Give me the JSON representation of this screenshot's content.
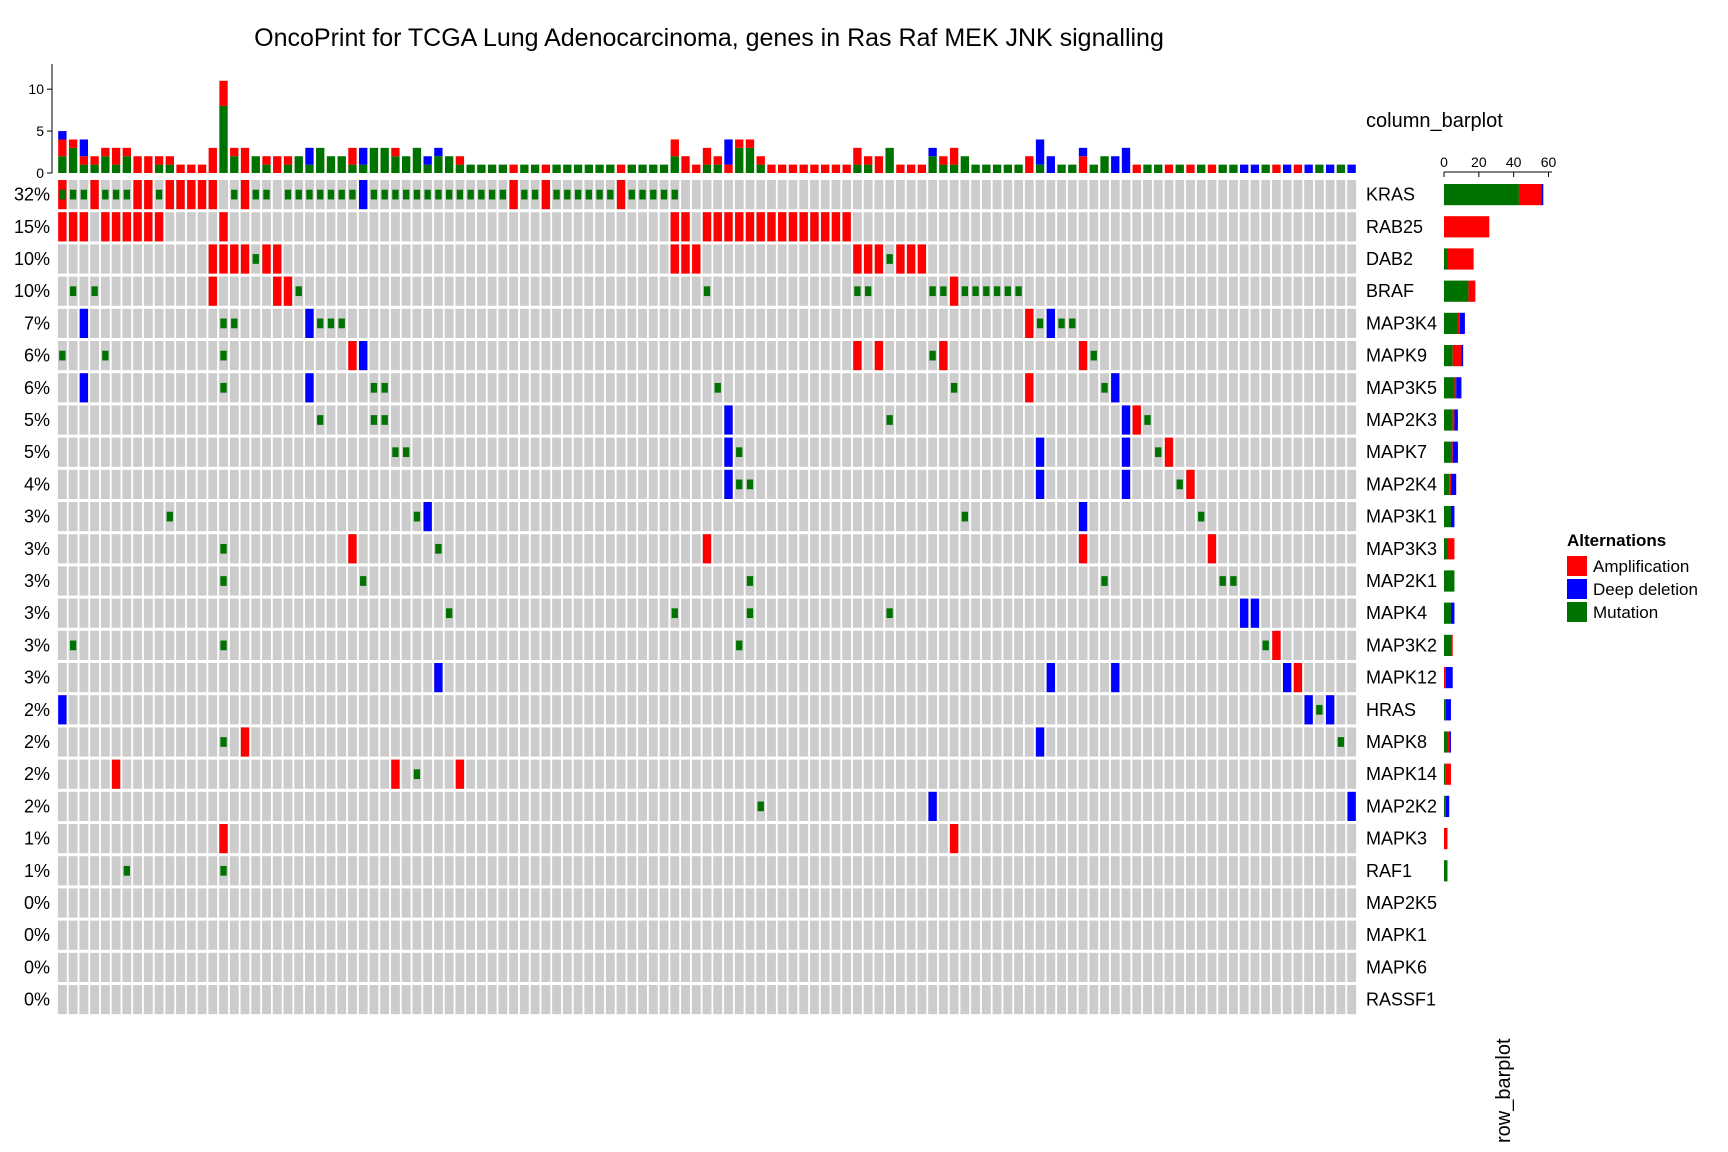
{
  "chart_data": {
    "type": "heatmap",
    "title": "OncoPrint for TCGA Lung Adenocarcinoma, genes in Ras Raf MEK JNK signalling",
    "n_samples": 121,
    "column_barplot": {
      "label": "column_barplot",
      "ylim": [
        0,
        13
      ],
      "ticks": [
        0,
        5,
        10
      ]
    },
    "row_barplot": {
      "label": "row_barplot",
      "xlim": [
        0,
        62
      ],
      "ticks": [
        0,
        20,
        40,
        60
      ]
    },
    "legend": {
      "title": "Alternations",
      "position": "right",
      "items": [
        {
          "key": "AMP",
          "label": "Amplification",
          "color": "#ff0000"
        },
        {
          "key": "HOMDEL",
          "label": "Deep deletion",
          "color": "#0000ff"
        },
        {
          "key": "MUT",
          "label": "Mutation",
          "color": "#007200"
        }
      ]
    },
    "background_color": "#cccccc",
    "genes": [
      {
        "name": "KRAS",
        "pct": "32%",
        "alterations": [
          [
            0,
            "AMP"
          ],
          [
            0,
            "MUT"
          ],
          [
            1,
            "MUT"
          ],
          [
            2,
            "MUT"
          ],
          [
            3,
            "AMP"
          ],
          [
            4,
            "MUT"
          ],
          [
            5,
            "MUT"
          ],
          [
            6,
            "MUT"
          ],
          [
            7,
            "AMP"
          ],
          [
            8,
            "AMP"
          ],
          [
            9,
            "MUT"
          ],
          [
            10,
            "AMP"
          ],
          [
            11,
            "AMP"
          ],
          [
            12,
            "AMP"
          ],
          [
            13,
            "AMP"
          ],
          [
            14,
            "AMP"
          ],
          [
            16,
            "MUT"
          ],
          [
            17,
            "AMP"
          ],
          [
            18,
            "MUT"
          ],
          [
            19,
            "MUT"
          ],
          [
            21,
            "MUT"
          ],
          [
            22,
            "MUT"
          ],
          [
            23,
            "MUT"
          ],
          [
            24,
            "MUT"
          ],
          [
            25,
            "MUT"
          ],
          [
            26,
            "MUT"
          ],
          [
            27,
            "MUT"
          ],
          [
            28,
            "HOMDEL"
          ],
          [
            29,
            "MUT"
          ],
          [
            30,
            "MUT"
          ],
          [
            31,
            "MUT"
          ],
          [
            32,
            "MUT"
          ],
          [
            33,
            "MUT"
          ],
          [
            34,
            "MUT"
          ],
          [
            35,
            "MUT"
          ],
          [
            36,
            "MUT"
          ],
          [
            37,
            "MUT"
          ],
          [
            38,
            "MUT"
          ],
          [
            39,
            "MUT"
          ],
          [
            40,
            "MUT"
          ],
          [
            41,
            "MUT"
          ],
          [
            42,
            "AMP"
          ],
          [
            43,
            "MUT"
          ],
          [
            44,
            "MUT"
          ],
          [
            45,
            "AMP"
          ],
          [
            46,
            "MUT"
          ],
          [
            47,
            "MUT"
          ],
          [
            48,
            "MUT"
          ],
          [
            49,
            "MUT"
          ],
          [
            50,
            "MUT"
          ],
          [
            51,
            "MUT"
          ],
          [
            52,
            "AMP"
          ],
          [
            53,
            "MUT"
          ],
          [
            54,
            "MUT"
          ],
          [
            55,
            "MUT"
          ],
          [
            56,
            "MUT"
          ],
          [
            57,
            "MUT"
          ]
        ]
      },
      {
        "name": "RAB25",
        "pct": "15%",
        "alterations": [
          [
            0,
            "AMP"
          ],
          [
            1,
            "AMP"
          ],
          [
            2,
            "AMP"
          ],
          [
            4,
            "AMP"
          ],
          [
            5,
            "AMP"
          ],
          [
            6,
            "AMP"
          ],
          [
            7,
            "AMP"
          ],
          [
            8,
            "AMP"
          ],
          [
            9,
            "AMP"
          ],
          [
            15,
            "AMP"
          ],
          [
            57,
            "AMP"
          ],
          [
            58,
            "AMP"
          ],
          [
            60,
            "AMP"
          ],
          [
            61,
            "AMP"
          ],
          [
            62,
            "AMP"
          ],
          [
            63,
            "AMP"
          ],
          [
            64,
            "AMP"
          ],
          [
            65,
            "AMP"
          ],
          [
            66,
            "AMP"
          ],
          [
            67,
            "AMP"
          ],
          [
            68,
            "AMP"
          ],
          [
            69,
            "AMP"
          ],
          [
            70,
            "AMP"
          ],
          [
            71,
            "AMP"
          ],
          [
            72,
            "AMP"
          ],
          [
            73,
            "AMP"
          ]
        ]
      },
      {
        "name": "DAB2",
        "pct": "10%",
        "alterations": [
          [
            14,
            "AMP"
          ],
          [
            15,
            "AMP"
          ],
          [
            16,
            "AMP"
          ],
          [
            17,
            "AMP"
          ],
          [
            18,
            "MUT"
          ],
          [
            19,
            "AMP"
          ],
          [
            20,
            "AMP"
          ],
          [
            57,
            "AMP"
          ],
          [
            58,
            "AMP"
          ],
          [
            59,
            "AMP"
          ],
          [
            74,
            "AMP"
          ],
          [
            75,
            "AMP"
          ],
          [
            76,
            "AMP"
          ],
          [
            77,
            "MUT"
          ],
          [
            78,
            "AMP"
          ],
          [
            79,
            "AMP"
          ],
          [
            80,
            "AMP"
          ]
        ]
      },
      {
        "name": "BRAF",
        "pct": "10%",
        "alterations": [
          [
            1,
            "MUT"
          ],
          [
            3,
            "MUT"
          ],
          [
            14,
            "AMP"
          ],
          [
            20,
            "AMP"
          ],
          [
            21,
            "AMP"
          ],
          [
            22,
            "MUT"
          ],
          [
            60,
            "MUT"
          ],
          [
            74,
            "MUT"
          ],
          [
            75,
            "MUT"
          ],
          [
            81,
            "MUT"
          ],
          [
            82,
            "MUT"
          ],
          [
            83,
            "AMP"
          ],
          [
            84,
            "MUT"
          ],
          [
            85,
            "MUT"
          ],
          [
            86,
            "MUT"
          ],
          [
            87,
            "MUT"
          ],
          [
            88,
            "MUT"
          ],
          [
            89,
            "MUT"
          ]
        ]
      },
      {
        "name": "MAP3K4",
        "pct": "7%",
        "alterations": [
          [
            2,
            "HOMDEL"
          ],
          [
            15,
            "MUT"
          ],
          [
            16,
            "MUT"
          ],
          [
            23,
            "HOMDEL"
          ],
          [
            24,
            "MUT"
          ],
          [
            25,
            "MUT"
          ],
          [
            26,
            "MUT"
          ],
          [
            90,
            "AMP"
          ],
          [
            91,
            "MUT"
          ],
          [
            92,
            "HOMDEL"
          ],
          [
            93,
            "MUT"
          ],
          [
            94,
            "MUT"
          ]
        ]
      },
      {
        "name": "MAPK9",
        "pct": "6%",
        "alterations": [
          [
            0,
            "MUT"
          ],
          [
            4,
            "MUT"
          ],
          [
            15,
            "MUT"
          ],
          [
            27,
            "AMP"
          ],
          [
            28,
            "HOMDEL"
          ],
          [
            74,
            "AMP"
          ],
          [
            76,
            "AMP"
          ],
          [
            81,
            "MUT"
          ],
          [
            82,
            "AMP"
          ],
          [
            95,
            "AMP"
          ],
          [
            96,
            "MUT"
          ]
        ]
      },
      {
        "name": "MAP3K5",
        "pct": "6%",
        "alterations": [
          [
            2,
            "HOMDEL"
          ],
          [
            15,
            "MUT"
          ],
          [
            23,
            "HOMDEL"
          ],
          [
            29,
            "MUT"
          ],
          [
            30,
            "MUT"
          ],
          [
            61,
            "MUT"
          ],
          [
            83,
            "MUT"
          ],
          [
            90,
            "AMP"
          ],
          [
            97,
            "MUT"
          ],
          [
            98,
            "HOMDEL"
          ]
        ]
      },
      {
        "name": "MAP2K3",
        "pct": "5%",
        "alterations": [
          [
            24,
            "MUT"
          ],
          [
            29,
            "MUT"
          ],
          [
            30,
            "MUT"
          ],
          [
            62,
            "HOMDEL"
          ],
          [
            77,
            "MUT"
          ],
          [
            99,
            "HOMDEL"
          ],
          [
            100,
            "AMP"
          ],
          [
            101,
            "MUT"
          ]
        ]
      },
      {
        "name": "MAPK7",
        "pct": "5%",
        "alterations": [
          [
            31,
            "MUT"
          ],
          [
            32,
            "MUT"
          ],
          [
            62,
            "HOMDEL"
          ],
          [
            63,
            "MUT"
          ],
          [
            91,
            "HOMDEL"
          ],
          [
            99,
            "HOMDEL"
          ],
          [
            102,
            "MUT"
          ],
          [
            103,
            "AMP"
          ]
        ]
      },
      {
        "name": "MAP2K4",
        "pct": "4%",
        "alterations": [
          [
            62,
            "HOMDEL"
          ],
          [
            63,
            "MUT"
          ],
          [
            64,
            "MUT"
          ],
          [
            91,
            "HOMDEL"
          ],
          [
            99,
            "HOMDEL"
          ],
          [
            104,
            "MUT"
          ],
          [
            105,
            "AMP"
          ]
        ]
      },
      {
        "name": "MAP3K1",
        "pct": "3%",
        "alterations": [
          [
            10,
            "MUT"
          ],
          [
            33,
            "MUT"
          ],
          [
            34,
            "HOMDEL"
          ],
          [
            84,
            "MUT"
          ],
          [
            95,
            "HOMDEL"
          ],
          [
            106,
            "MUT"
          ]
        ]
      },
      {
        "name": "MAP3K3",
        "pct": "3%",
        "alterations": [
          [
            15,
            "MUT"
          ],
          [
            27,
            "AMP"
          ],
          [
            35,
            "MUT"
          ],
          [
            60,
            "AMP"
          ],
          [
            95,
            "AMP"
          ],
          [
            107,
            "AMP"
          ]
        ]
      },
      {
        "name": "MAP2K1",
        "pct": "3%",
        "alterations": [
          [
            15,
            "MUT"
          ],
          [
            28,
            "MUT"
          ],
          [
            64,
            "MUT"
          ],
          [
            97,
            "MUT"
          ],
          [
            108,
            "MUT"
          ],
          [
            109,
            "MUT"
          ]
        ]
      },
      {
        "name": "MAPK4",
        "pct": "3%",
        "alterations": [
          [
            36,
            "MUT"
          ],
          [
            57,
            "MUT"
          ],
          [
            64,
            "MUT"
          ],
          [
            77,
            "MUT"
          ],
          [
            110,
            "HOMDEL"
          ],
          [
            111,
            "HOMDEL"
          ]
        ]
      },
      {
        "name": "MAP3K2",
        "pct": "3%",
        "alterations": [
          [
            1,
            "MUT"
          ],
          [
            15,
            "MUT"
          ],
          [
            63,
            "MUT"
          ],
          [
            112,
            "MUT"
          ],
          [
            113,
            "AMP"
          ]
        ]
      },
      {
        "name": "MAPK12",
        "pct": "3%",
        "alterations": [
          [
            35,
            "HOMDEL"
          ],
          [
            92,
            "HOMDEL"
          ],
          [
            98,
            "HOMDEL"
          ],
          [
            114,
            "HOMDEL"
          ],
          [
            115,
            "AMP"
          ]
        ]
      },
      {
        "name": "HRAS",
        "pct": "2%",
        "alterations": [
          [
            0,
            "HOMDEL"
          ],
          [
            116,
            "HOMDEL"
          ],
          [
            117,
            "MUT"
          ],
          [
            118,
            "HOMDEL"
          ]
        ]
      },
      {
        "name": "MAPK8",
        "pct": "2%",
        "alterations": [
          [
            15,
            "MUT"
          ],
          [
            17,
            "AMP"
          ],
          [
            91,
            "HOMDEL"
          ],
          [
            119,
            "MUT"
          ]
        ]
      },
      {
        "name": "MAPK14",
        "pct": "2%",
        "alterations": [
          [
            5,
            "AMP"
          ],
          [
            31,
            "AMP"
          ],
          [
            33,
            "MUT"
          ],
          [
            37,
            "AMP"
          ]
        ]
      },
      {
        "name": "MAP2K2",
        "pct": "2%",
        "alterations": [
          [
            65,
            "MUT"
          ],
          [
            81,
            "HOMDEL"
          ],
          [
            120,
            "HOMDEL"
          ]
        ]
      },
      {
        "name": "MAPK3",
        "pct": "1%",
        "alterations": [
          [
            15,
            "AMP"
          ],
          [
            83,
            "AMP"
          ]
        ]
      },
      {
        "name": "RAF1",
        "pct": "1%",
        "alterations": [
          [
            6,
            "MUT"
          ],
          [
            15,
            "MUT"
          ]
        ]
      },
      {
        "name": "MAP2K5",
        "pct": "0%",
        "alterations": []
      },
      {
        "name": "MAPK1",
        "pct": "0%",
        "alterations": []
      },
      {
        "name": "MAPK6",
        "pct": "0%",
        "alterations": []
      },
      {
        "name": "RASSF1",
        "pct": "0%",
        "alterations": []
      }
    ]
  }
}
